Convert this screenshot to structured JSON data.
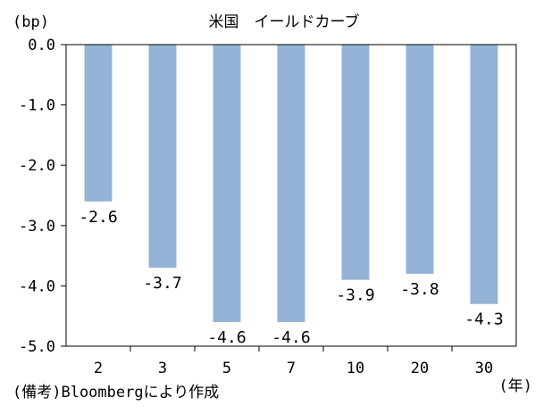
{
  "chart_data": {
    "type": "bar",
    "title": "米国　イールドカーブ",
    "y_unit_label": "(bp)",
    "x_unit_label": "(年)",
    "source_note": "(備考)Bloombergにより作成",
    "categories": [
      "2",
      "3",
      "5",
      "7",
      "10",
      "20",
      "30"
    ],
    "values": [
      -2.6,
      -3.7,
      -4.6,
      -4.6,
      -3.9,
      -3.8,
      -4.3
    ],
    "data_labels": [
      "-2.6",
      "-3.7",
      "-4.6",
      "-4.6",
      "-3.9",
      "-3.8",
      "-4.3"
    ],
    "ylim": [
      -5.0,
      0.0
    ],
    "yticks": [
      "0.0",
      "-1.0",
      "-2.0",
      "-3.0",
      "-4.0",
      "-5.0"
    ],
    "ytick_values": [
      0,
      -1,
      -2,
      -3,
      -4,
      -5
    ],
    "bar_color": "#95b3d7",
    "grid": false,
    "legend": "none"
  }
}
